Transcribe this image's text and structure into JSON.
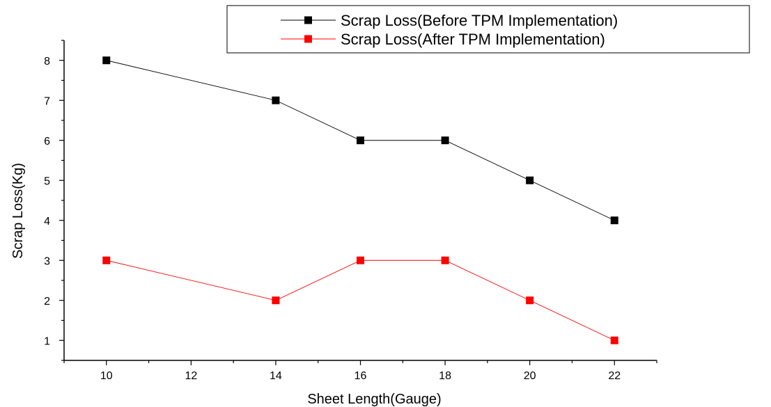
{
  "chart_data": {
    "type": "line",
    "xlabel": "Sheet Length(Gauge)",
    "ylabel": "Scrap Loss(Kg)",
    "xlim": [
      9,
      23
    ],
    "ylim": [
      0.5,
      8.5
    ],
    "x_ticks": [
      10,
      12,
      14,
      16,
      18,
      20,
      22
    ],
    "y_ticks": [
      1,
      2,
      3,
      4,
      5,
      6,
      7,
      8
    ],
    "grid": false,
    "legend_position": "top-right",
    "series": [
      {
        "name": "Scrap Loss(Before TPM Implementation)",
        "color": "#000000",
        "marker": "square",
        "x": [
          10,
          14,
          16,
          18,
          20,
          22
        ],
        "y": [
          8,
          7,
          6,
          6,
          5,
          4
        ]
      },
      {
        "name": "Scrap Loss(After  TPM Implementation)",
        "color": "#ff0000",
        "marker": "square",
        "x": [
          10,
          14,
          16,
          18,
          20,
          22
        ],
        "y": [
          3,
          2,
          3,
          3,
          2,
          1
        ]
      }
    ]
  }
}
